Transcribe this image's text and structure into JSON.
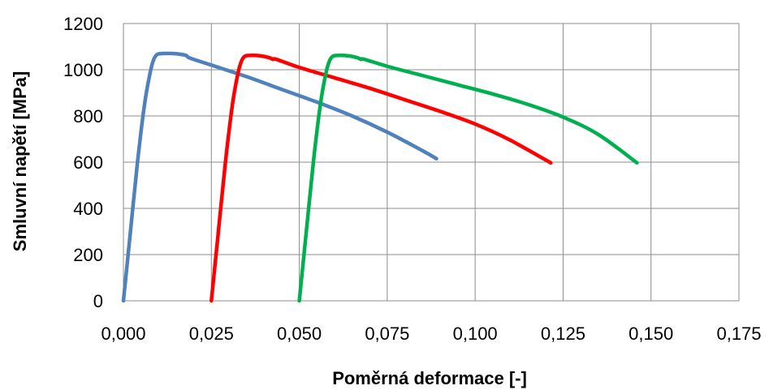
{
  "chart_data": {
    "type": "line",
    "title": "",
    "xlabel": "Poměrná deformace [-]",
    "ylabel": "Smluvní napětí [MPa]",
    "xlim": [
      0,
      0.175
    ],
    "ylim": [
      0,
      1200
    ],
    "x_tick_labels": [
      "0,000",
      "0,025",
      "0,050",
      "0,075",
      "0,100",
      "0,125",
      "0,150",
      "0,175"
    ],
    "x_ticks": [
      0,
      0.025,
      0.05,
      0.075,
      0.1,
      0.125,
      0.15,
      0.175
    ],
    "y_tick_labels": [
      "0",
      "200",
      "400",
      "600",
      "800",
      "1000",
      "1200"
    ],
    "y_ticks": [
      0,
      200,
      400,
      600,
      800,
      1000,
      1200
    ],
    "grid": true,
    "legend": "none",
    "series": [
      {
        "color": "#4f81bd",
        "x": [
          0.0,
          0.002,
          0.004,
          0.006,
          0.0075,
          0.0085,
          0.0095,
          0.011,
          0.014,
          0.017,
          0.018,
          0.019,
          0.025,
          0.035,
          0.045,
          0.055,
          0.065,
          0.075,
          0.085,
          0.089
        ],
        "y": [
          0,
          300,
          600,
          850,
          980,
          1040,
          1065,
          1070,
          1070,
          1065,
          1060,
          1050,
          1020,
          970,
          915,
          860,
          800,
          730,
          650,
          615
        ]
      },
      {
        "color": "#ff0000",
        "x": [
          0.025,
          0.027,
          0.029,
          0.031,
          0.0325,
          0.0335,
          0.0345,
          0.036,
          0.039,
          0.0415,
          0.0425,
          0.0435,
          0.05,
          0.06,
          0.07,
          0.08,
          0.09,
          0.1,
          0.11,
          0.1215
        ],
        "y": [
          0,
          300,
          600,
          850,
          980,
          1035,
          1058,
          1062,
          1060,
          1052,
          1045,
          1045,
          1010,
          965,
          920,
          870,
          820,
          765,
          695,
          597
        ]
      },
      {
        "color": "#00b050",
        "x": [
          0.05,
          0.052,
          0.054,
          0.056,
          0.0575,
          0.0585,
          0.0595,
          0.061,
          0.064,
          0.0665,
          0.0675,
          0.0685,
          0.075,
          0.085,
          0.095,
          0.105,
          0.115,
          0.125,
          0.135,
          0.146
        ],
        "y": [
          0,
          300,
          600,
          850,
          980,
          1035,
          1058,
          1062,
          1060,
          1052,
          1045,
          1045,
          1015,
          975,
          935,
          895,
          850,
          795,
          720,
          597
        ]
      }
    ]
  }
}
